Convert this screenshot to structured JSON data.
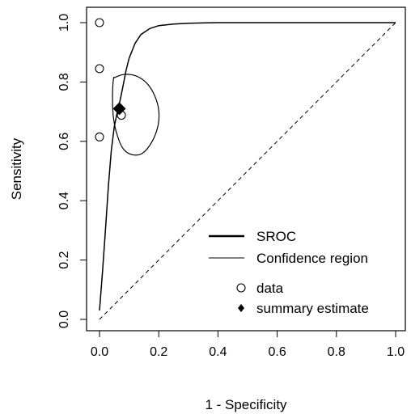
{
  "chart_data": {
    "type": "line",
    "xlabel": "1 - Specificity",
    "ylabel": "Sensitivity",
    "xlim": [
      0,
      1
    ],
    "ylim": [
      0,
      1
    ],
    "x_ticks": [
      "0.0",
      "0.2",
      "0.4",
      "0.6",
      "0.8",
      "1.0"
    ],
    "y_ticks": [
      "0.0",
      "0.2",
      "0.4",
      "0.6",
      "0.8",
      "1.0"
    ],
    "grid": false,
    "legend_position": "bottom-right",
    "sroc_curve": {
      "name": "SROC",
      "x": [
        0.0,
        0.01,
        0.02,
        0.03,
        0.04,
        0.05,
        0.06,
        0.07,
        0.08,
        0.09,
        0.1,
        0.12,
        0.14,
        0.17,
        0.2,
        0.25,
        0.3,
        0.4,
        0.5,
        0.6,
        0.8,
        1.0
      ],
      "y": [
        0.03,
        0.16,
        0.3,
        0.45,
        0.57,
        0.65,
        0.7,
        0.74,
        0.79,
        0.84,
        0.88,
        0.93,
        0.96,
        0.98,
        0.99,
        0.995,
        0.998,
        1.0,
        1.0,
        1.0,
        1.0,
        1.0
      ]
    },
    "confidence_region": {
      "name": "Confidence region",
      "x": [
        0.047,
        0.044,
        0.047,
        0.06,
        0.08,
        0.11,
        0.145,
        0.178,
        0.198,
        0.2,
        0.188,
        0.165,
        0.135,
        0.105,
        0.08,
        0.063,
        0.052,
        0.047
      ],
      "y": [
        0.81,
        0.75,
        0.68,
        0.62,
        0.575,
        0.555,
        0.56,
        0.6,
        0.655,
        0.705,
        0.75,
        0.79,
        0.815,
        0.825,
        0.825,
        0.82,
        0.815,
        0.81
      ]
    },
    "data_points": {
      "name": "data",
      "points": [
        {
          "x": 0.0,
          "y": 1.0
        },
        {
          "x": 0.0,
          "y": 0.845
        },
        {
          "x": 0.0,
          "y": 0.615
        },
        {
          "x": 0.074,
          "y": 0.688
        }
      ]
    },
    "summary_estimate": {
      "name": "summary estimate",
      "x": 0.067,
      "y": 0.71
    },
    "reference_line": {
      "x": [
        0,
        1
      ],
      "y": [
        0,
        1
      ],
      "style": "dashed"
    },
    "legend": [
      "SROC",
      "Confidence region",
      "data",
      "summary estimate"
    ]
  }
}
